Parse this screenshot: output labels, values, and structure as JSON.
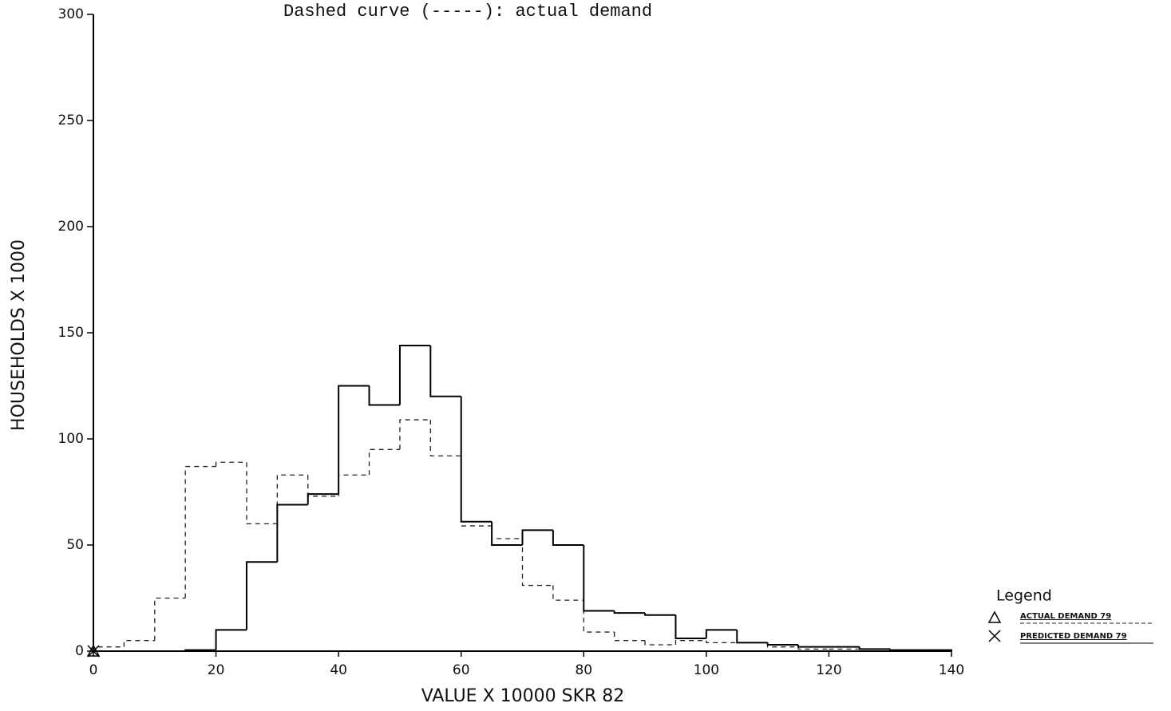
{
  "chart_data": {
    "type": "histogram",
    "title": "Dashed curve (-----): actual demand",
    "xlabel": "VALUE X 10000 SKR 82",
    "ylabel": "HOUSEHOLDS X 1000",
    "legend_title": "Legend",
    "bins": [
      0,
      5,
      10,
      15,
      20,
      25,
      30,
      35,
      40,
      45,
      50,
      55,
      60,
      65,
      70,
      75,
      80,
      85,
      90,
      95,
      100,
      105,
      110,
      115,
      120,
      125,
      130,
      135,
      140
    ],
    "series": [
      {
        "name": "ACTUAL DEMAND 79",
        "color": "#222222",
        "linestyle": "dashed",
        "values": [
          2,
          5,
          25,
          87,
          89,
          60,
          83,
          73,
          83,
          95,
          109,
          92,
          59,
          53,
          31,
          24,
          9,
          5,
          3,
          5,
          4,
          4,
          2,
          1,
          1,
          1,
          0.5,
          0.5
        ]
      },
      {
        "name": "PREDICTED DEMAND 79",
        "color": "#000000",
        "linestyle": "solid",
        "values": [
          0,
          0,
          0,
          0.5,
          10,
          42,
          69,
          74,
          125,
          116,
          144,
          120,
          61,
          50,
          57,
          50,
          19,
          18,
          17,
          6,
          10,
          4,
          3,
          2,
          2,
          1,
          0.5,
          0.5
        ]
      }
    ],
    "xlim": [
      0,
      140
    ],
    "ylim": [
      0,
      300
    ],
    "xticks": [
      0,
      20,
      40,
      60,
      80,
      100,
      120,
      140
    ],
    "yticks": [
      0,
      50,
      100,
      150,
      200,
      250,
      300
    ]
  }
}
